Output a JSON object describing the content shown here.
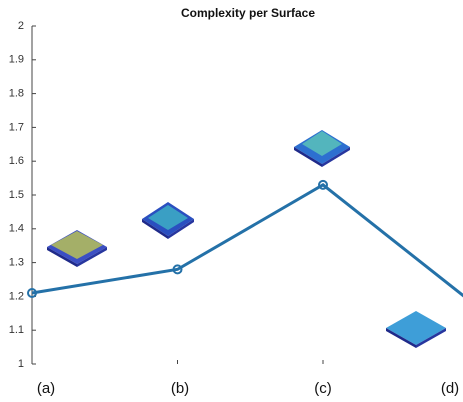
{
  "chart_data": {
    "type": "line",
    "title": "Complexity per Surface",
    "categories": [
      "(a)",
      "(b)",
      "(c)",
      "(d)"
    ],
    "values": [
      1.21,
      1.28,
      1.53,
      1.19
    ],
    "color": "#2471a8",
    "ylim": [
      1,
      2
    ],
    "yticks": [
      1,
      1.1,
      1.2,
      1.3,
      1.4,
      1.5,
      1.6,
      1.7,
      1.8,
      1.9,
      2
    ]
  }
}
